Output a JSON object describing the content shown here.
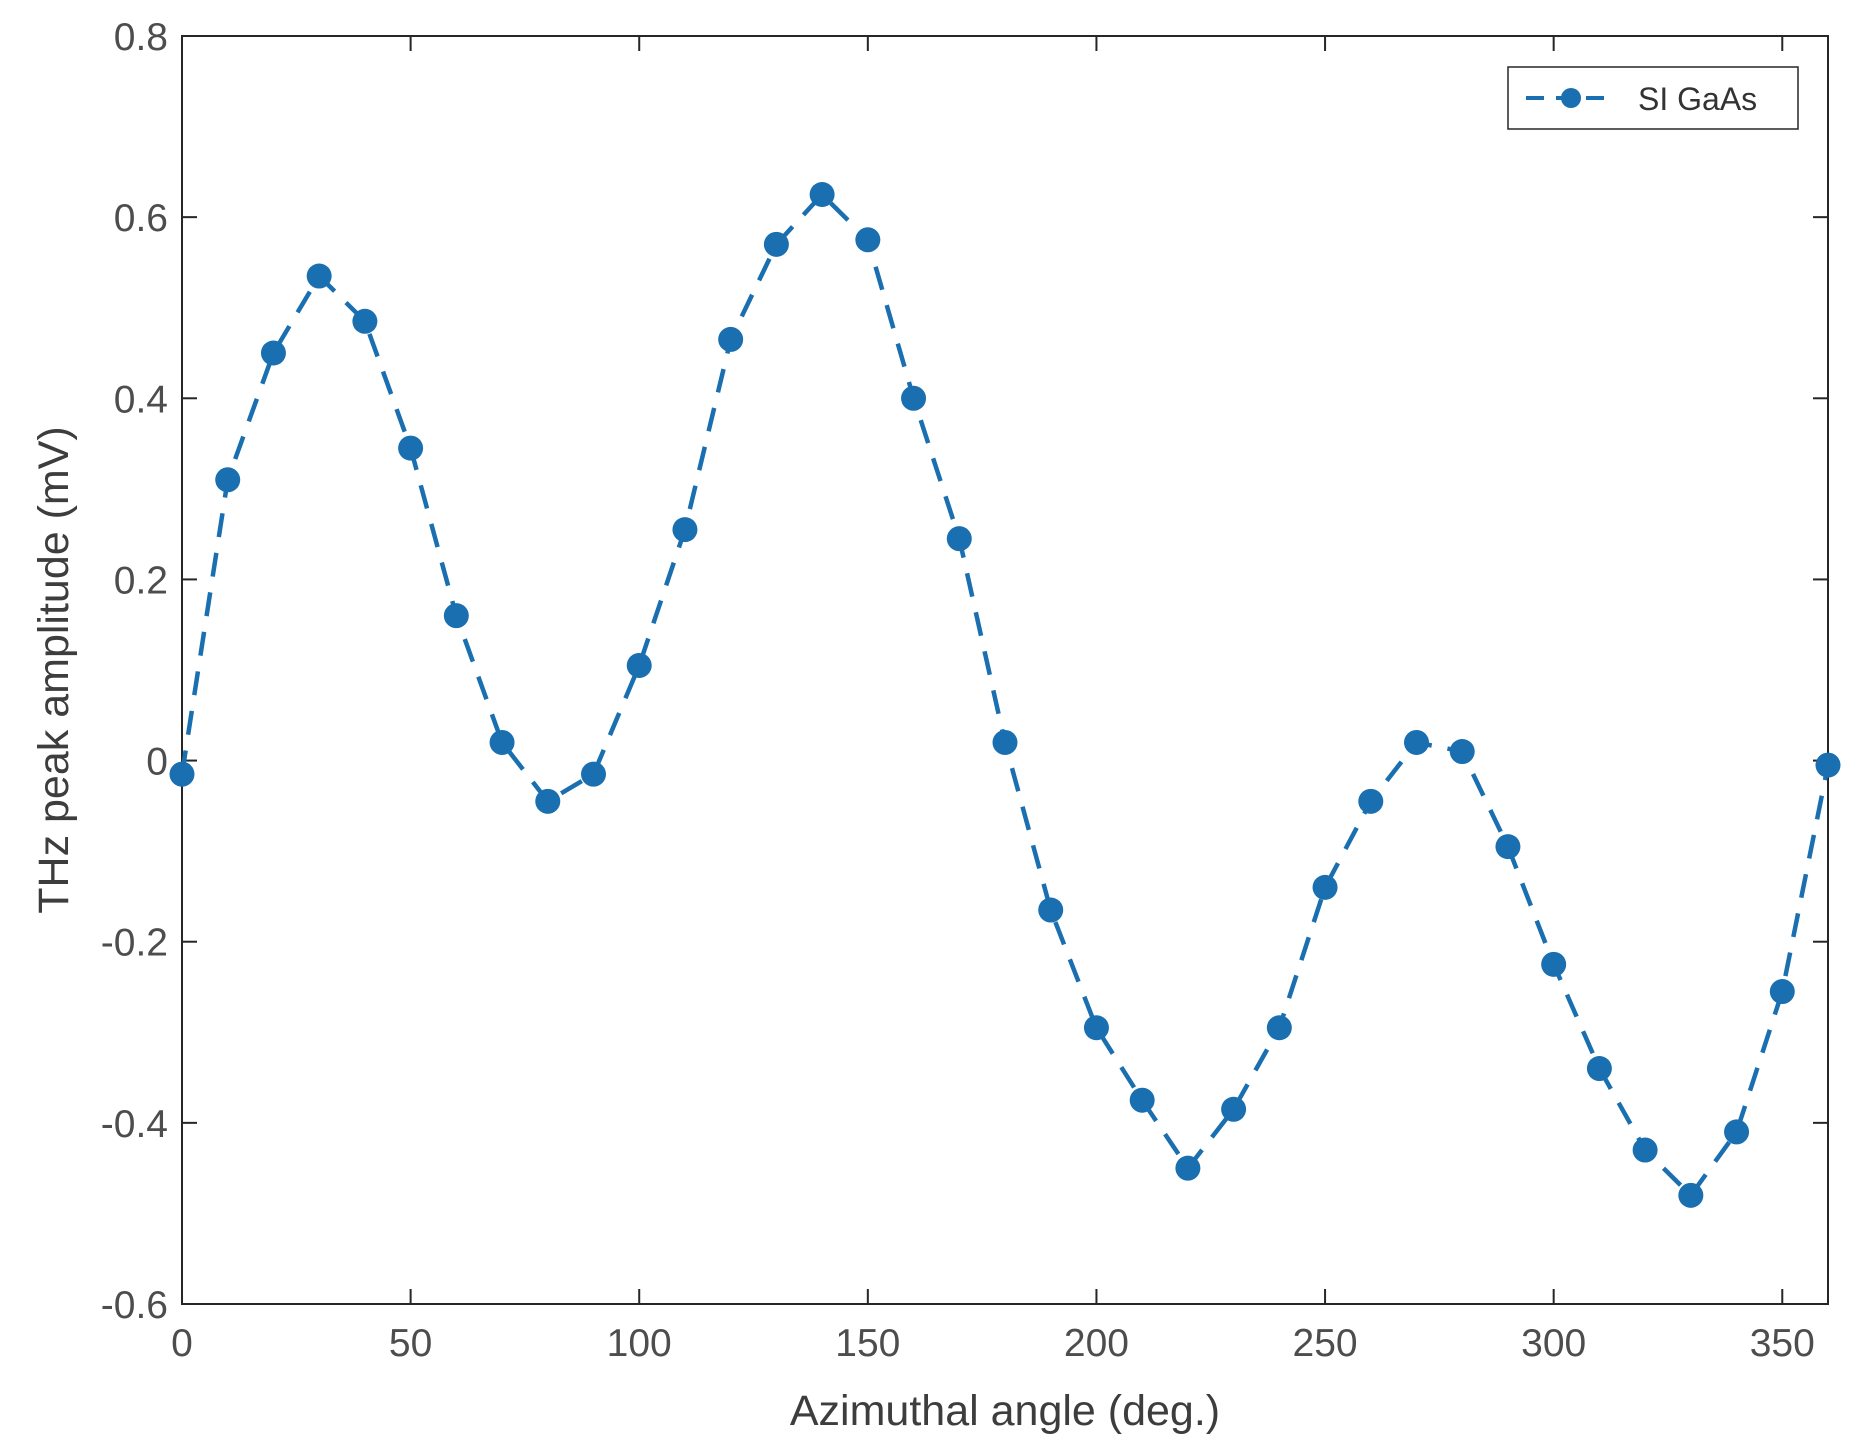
{
  "chart_data": {
    "type": "line",
    "xlabel": "Azimuthal angle (deg.)",
    "ylabel": "THz peak amplitude (mV)",
    "xlim": [
      0,
      360
    ],
    "ylim": [
      -0.6,
      0.8
    ],
    "x_ticks": [
      0,
      50,
      100,
      150,
      200,
      250,
      300,
      350
    ],
    "x_tick_labels": [
      "0",
      "50",
      "100",
      "150",
      "200",
      "250",
      "300",
      "350"
    ],
    "y_ticks": [
      -0.6,
      -0.4,
      -0.2,
      0,
      0.2,
      0.4,
      0.6,
      0.8
    ],
    "y_tick_labels": [
      "-0.6",
      "-0.4",
      "-0.2",
      "0",
      "0.2",
      "0.4",
      "0.6",
      "0.8"
    ],
    "grid": false,
    "legend_position": "top-right",
    "line_style": "dashed",
    "marker": "circle",
    "color": "#1a6fb0",
    "series": [
      {
        "name": "SI GaAs",
        "x": [
          0,
          10,
          20,
          30,
          40,
          50,
          60,
          70,
          80,
          90,
          100,
          110,
          120,
          130,
          140,
          150,
          160,
          170,
          180,
          190,
          200,
          210,
          220,
          230,
          240,
          250,
          260,
          270,
          280,
          290,
          300,
          310,
          320,
          330,
          340,
          350,
          360
        ],
        "values": [
          -0.015,
          0.31,
          0.45,
          0.535,
          0.485,
          0.345,
          0.16,
          0.02,
          -0.045,
          -0.015,
          0.105,
          0.255,
          0.465,
          0.57,
          0.625,
          0.575,
          0.4,
          0.245,
          0.02,
          -0.165,
          -0.295,
          -0.375,
          -0.45,
          -0.385,
          -0.295,
          -0.14,
          -0.045,
          0.02,
          0.01,
          -0.095,
          -0.225,
          -0.34,
          -0.43,
          -0.48,
          -0.41,
          -0.255,
          -0.005
        ]
      }
    ]
  }
}
